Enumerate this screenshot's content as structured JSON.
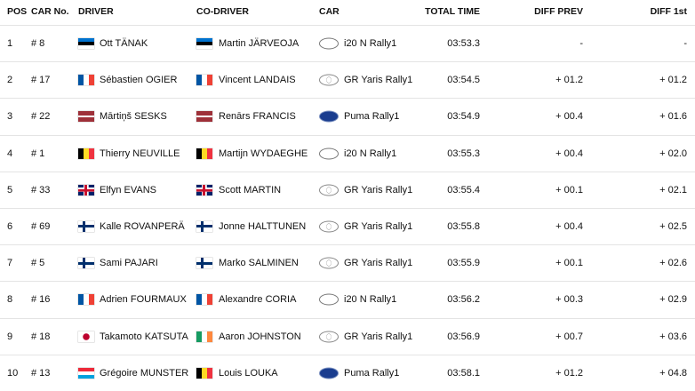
{
  "table": {
    "headers": [
      "POS",
      "CAR No.",
      "DRIVER",
      "CO-DRIVER",
      "CAR",
      "TOTAL TIME",
      "DIFF PREV",
      "DIFF 1st"
    ],
    "rows": [
      [
        "1",
        "# 8",
        "Ott TÄNAK",
        "Martin JÄRVEOJA",
        "i20 N Rally1",
        "03:53.3",
        "-",
        "-"
      ],
      [
        "2",
        "# 17",
        "Sébastien OGIER",
        "Vincent LANDAIS",
        "GR Yaris Rally1",
        "03:54.5",
        "+ 01.2",
        "+ 01.2"
      ],
      [
        "3",
        "# 22",
        "Mārtiņš SESKS",
        "Renārs FRANCIS",
        "Puma Rally1",
        "03:54.9",
        "+ 00.4",
        "+ 01.6"
      ],
      [
        "4",
        "# 1",
        "Thierry NEUVILLE",
        "Martijn WYDAEGHE",
        "i20 N Rally1",
        "03:55.3",
        "+ 00.4",
        "+ 02.0"
      ],
      [
        "5",
        "# 33",
        "Elfyn EVANS",
        "Scott MARTIN",
        "GR Yaris Rally1",
        "03:55.4",
        "+ 00.1",
        "+ 02.1"
      ],
      [
        "6",
        "# 69",
        "Kalle ROVANPERÄ",
        "Jonne HALTTUNEN",
        "GR Yaris Rally1",
        "03:55.8",
        "+ 00.4",
        "+ 02.5"
      ],
      [
        "7",
        "# 5",
        "Sami PAJARI",
        "Marko SALMINEN",
        "GR Yaris Rally1",
        "03:55.9",
        "+ 00.1",
        "+ 02.6"
      ],
      [
        "8",
        "# 16",
        "Adrien FOURMAUX",
        "Alexandre CORIA",
        "i20 N Rally1",
        "03:56.2",
        "+ 00.3",
        "+ 02.9"
      ],
      [
        "9",
        "# 18",
        "Takamoto KATSUTA",
        "Aaron JOHNSTON",
        "GR Yaris Rally1",
        "03:56.9",
        "+ 00.7",
        "+ 03.6"
      ],
      [
        "10",
        "# 13",
        "Grégoire MUNSTER",
        "Louis LOUKA",
        "Puma Rally1",
        "03:58.1",
        "+ 01.2",
        "+ 04.8"
      ]
    ]
  }
}
